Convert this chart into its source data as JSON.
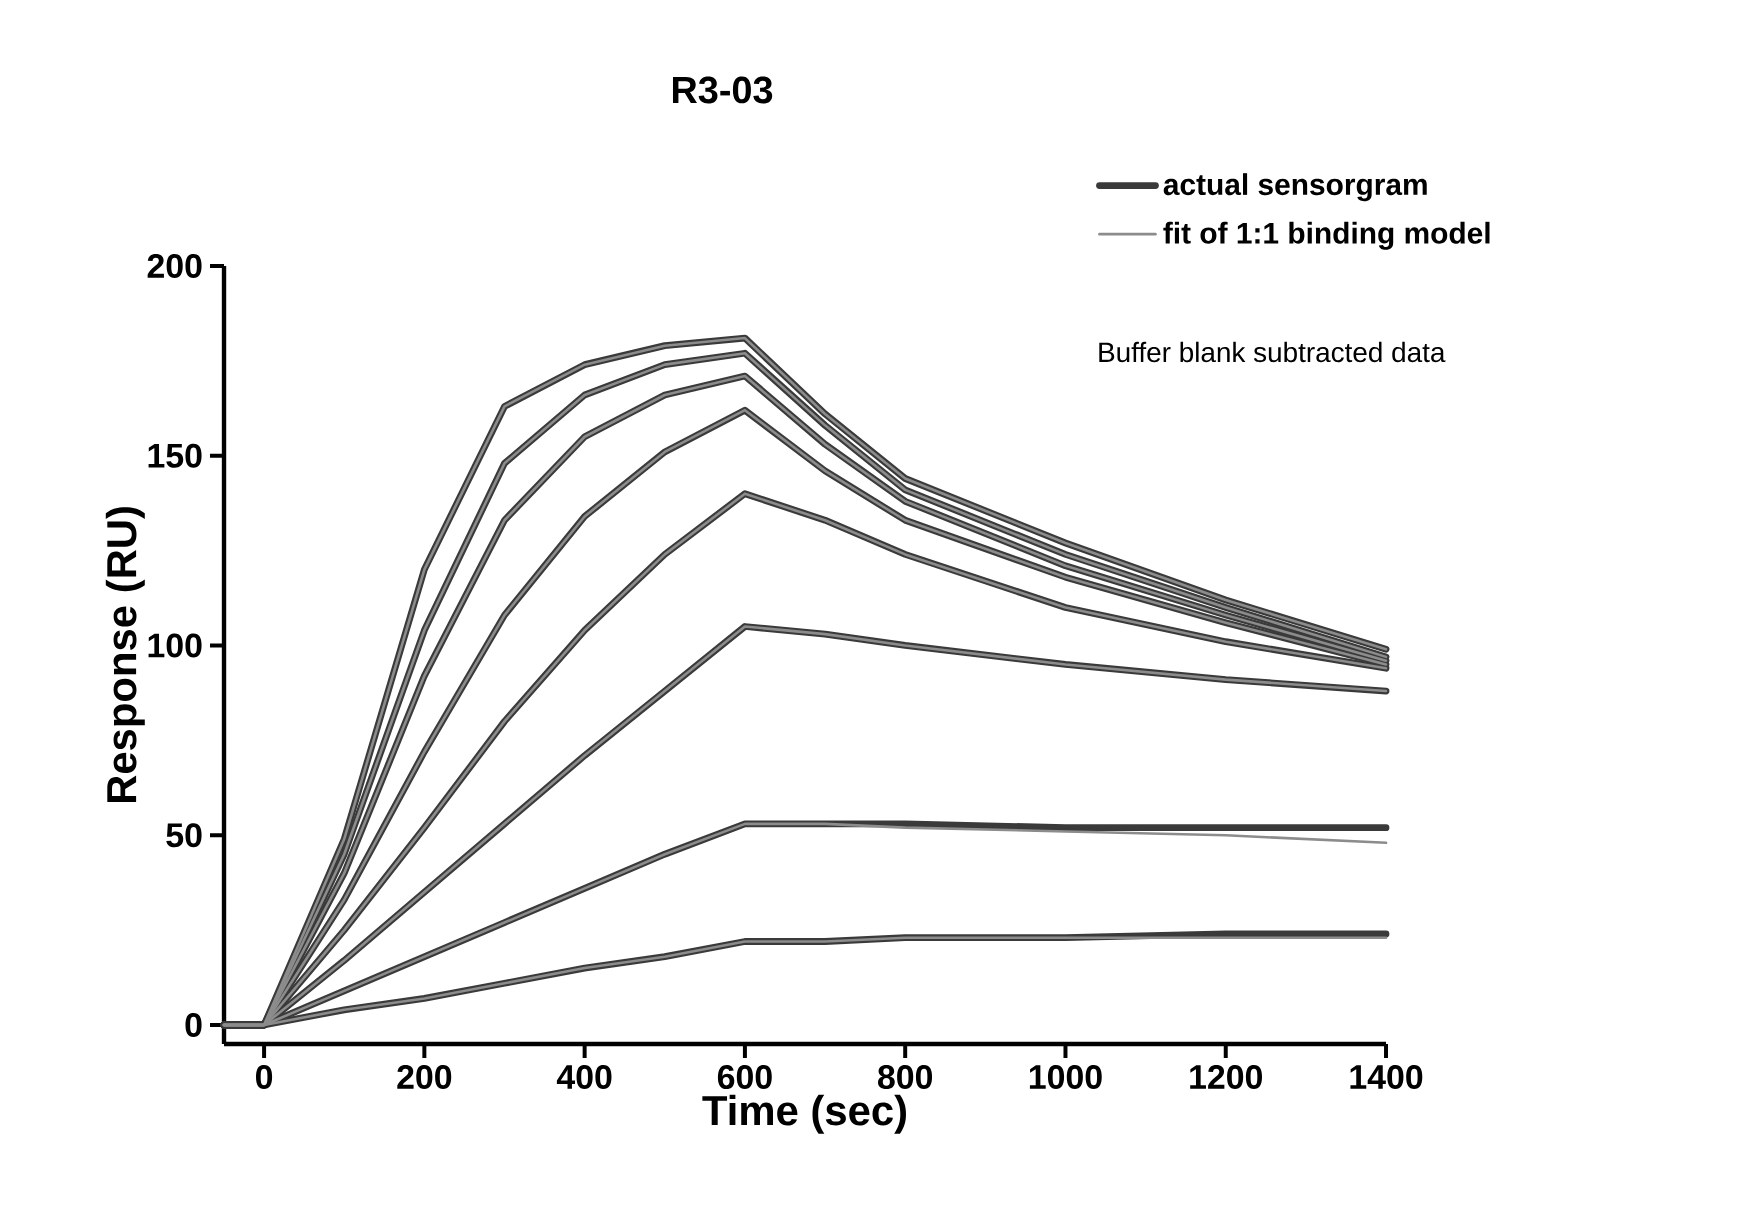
{
  "chart_data": {
    "type": "line",
    "title": "R3-03",
    "xlabel": "Time (sec)",
    "ylabel": "Response (RU)",
    "annotations": [
      "Buffer blank subtracted data"
    ],
    "xlim": [
      -50,
      1400
    ],
    "ylim": [
      -5,
      200
    ],
    "xticks": [
      0,
      200,
      400,
      600,
      800,
      1000,
      1200,
      1400
    ],
    "yticks": [
      0,
      50,
      100,
      150,
      200
    ],
    "legend": "top right",
    "x": [
      -50,
      0,
      100,
      200,
      300,
      400,
      500,
      600,
      700,
      800,
      1000,
      1200,
      1400
    ],
    "series": [
      {
        "name": "actual sensorgram",
        "color": "#3a3a3a",
        "values": [
          0,
          0,
          4,
          7,
          11,
          15,
          18,
          22,
          22,
          23,
          23,
          24,
          24
        ]
      },
      {
        "color": "#3a3a3a",
        "values": [
          0,
          0,
          9,
          18,
          27,
          36,
          45,
          53,
          53,
          53,
          52,
          52,
          52
        ]
      },
      {
        "color": "#3a3a3a",
        "values": [
          0,
          0,
          17,
          35,
          53,
          71,
          88,
          105,
          103,
          100,
          95,
          91,
          88
        ]
      },
      {
        "color": "#3a3a3a",
        "values": [
          0,
          0,
          25,
          52,
          80,
          104,
          124,
          140,
          133,
          124,
          110,
          101,
          94
        ]
      },
      {
        "color": "#3a3a3a",
        "values": [
          0,
          0,
          33,
          72,
          108,
          134,
          151,
          162,
          146,
          133,
          118,
          106,
          95
        ]
      },
      {
        "color": "#3a3a3a",
        "values": [
          0,
          0,
          40,
          92,
          133,
          155,
          166,
          171,
          153,
          138,
          121,
          108,
          96
        ]
      },
      {
        "color": "#3a3a3a",
        "values": [
          0,
          0,
          45,
          104,
          148,
          166,
          174,
          177,
          158,
          141,
          124,
          110,
          97
        ]
      },
      {
        "color": "#3a3a3a",
        "values": [
          0,
          0,
          49,
          120,
          163,
          174,
          179,
          181,
          161,
          144,
          127,
          112,
          99
        ]
      },
      {
        "name": "fit of 1:1 binding model",
        "color": "#8c8c8c",
        "values": [
          0,
          0,
          4,
          7,
          11,
          15,
          18,
          22,
          22,
          23,
          23,
          23,
          23
        ]
      },
      {
        "color": "#8c8c8c",
        "values": [
          0,
          0,
          9,
          18,
          27,
          36,
          45,
          53,
          53,
          52,
          51,
          50,
          48
        ]
      },
      {
        "color": "#8c8c8c",
        "values": [
          0,
          0,
          17,
          35,
          53,
          71,
          88,
          105,
          103,
          100,
          95,
          91,
          88
        ]
      },
      {
        "color": "#8c8c8c",
        "values": [
          0,
          0,
          25,
          52,
          80,
          104,
          124,
          140,
          133,
          124,
          110,
          101,
          94
        ]
      },
      {
        "color": "#8c8c8c",
        "values": [
          0,
          0,
          33,
          72,
          108,
          134,
          151,
          162,
          146,
          133,
          118,
          106,
          95
        ]
      },
      {
        "color": "#8c8c8c",
        "values": [
          0,
          0,
          40,
          92,
          133,
          155,
          166,
          171,
          153,
          138,
          121,
          108,
          96
        ]
      },
      {
        "color": "#8c8c8c",
        "values": [
          0,
          0,
          45,
          104,
          148,
          166,
          174,
          177,
          158,
          141,
          124,
          110,
          97
        ]
      },
      {
        "color": "#8c8c8c",
        "values": [
          0,
          0,
          49,
          120,
          163,
          174,
          179,
          181,
          161,
          144,
          127,
          112,
          99
        ]
      }
    ]
  }
}
